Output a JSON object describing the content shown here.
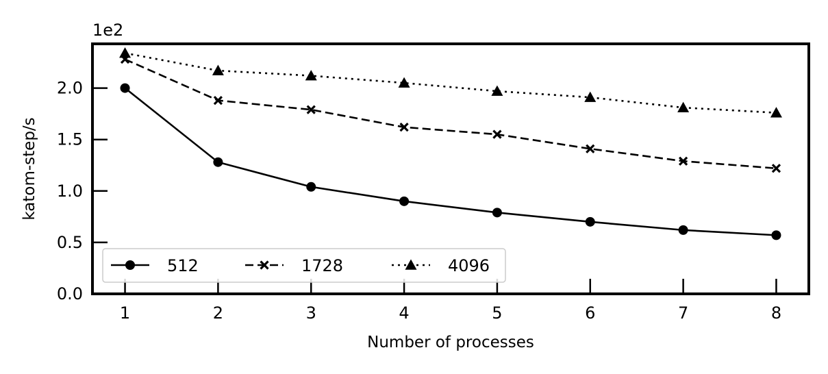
{
  "chart_data": {
    "type": "line",
    "xlabel": "Number of processes",
    "ylabel": "katom-step/s",
    "y_offset_label": "1e2",
    "x": [
      1,
      2,
      3,
      4,
      5,
      6,
      7,
      8
    ],
    "x_ticks": [
      "1",
      "2",
      "3",
      "4",
      "5",
      "6",
      "7",
      "8"
    ],
    "y_ticks": [
      "0.0",
      "0.5",
      "1.0",
      "1.5",
      "2.0"
    ],
    "xlim": [
      0.65,
      8.35
    ],
    "ylim": [
      0,
      2.43
    ],
    "y_scale_note": "values in units of 1e2",
    "grid": false,
    "legend_position": "lower-left",
    "series": [
      {
        "name": "512",
        "marker": "circle",
        "linestyle": "solid",
        "color": "#000000",
        "values": [
          2.0,
          1.28,
          1.04,
          0.9,
          0.79,
          0.7,
          0.62,
          0.57
        ]
      },
      {
        "name": "1728",
        "marker": "x",
        "linestyle": "dashed",
        "color": "#000000",
        "values": [
          2.28,
          1.88,
          1.79,
          1.62,
          1.55,
          1.41,
          1.29,
          1.22
        ]
      },
      {
        "name": "4096",
        "marker": "triangle",
        "linestyle": "dotted",
        "color": "#000000",
        "values": [
          2.34,
          2.17,
          2.12,
          2.05,
          1.97,
          1.91,
          1.81,
          1.76
        ]
      }
    ]
  }
}
